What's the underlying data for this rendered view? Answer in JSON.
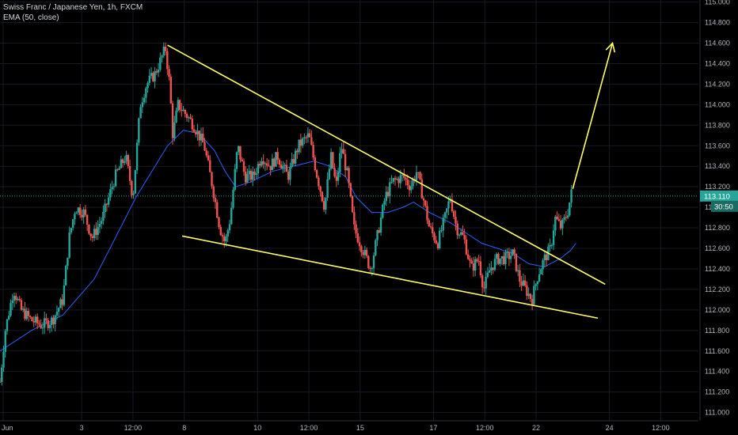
{
  "legend": {
    "symbol_line": "Swiss Franc / Japanese Yen, 1h, FXCM",
    "indicator_line": "EMA (50, close)"
  },
  "price_badge": {
    "price": "113.110",
    "countdown": "30:50"
  },
  "colors": {
    "background": "#000000",
    "up_candle": "#26a69a",
    "down_candle": "#ef5350",
    "ema": "#2962ff",
    "trendlines": "#ffff66",
    "price_line": "#26a69a",
    "grid": "#161a22"
  },
  "chart_data": {
    "type": "candlestick",
    "instrument": "Swiss Franc / Japanese Yen",
    "timeframe": "1h",
    "source": "FXCM",
    "y_axis": {
      "ticks": [
        "115.000",
        "114.800",
        "114.600",
        "114.400",
        "114.200",
        "114.000",
        "113.800",
        "113.600",
        "113.400",
        "113.200",
        "113.000",
        "112.800",
        "112.600",
        "112.400",
        "112.200",
        "112.000",
        "111.800",
        "111.600",
        "111.400",
        "111.200",
        "111.000"
      ],
      "range": [
        110.92,
        115.02
      ]
    },
    "x_axis": {
      "ticks": [
        {
          "label": "Jun",
          "t": 0.3
        },
        {
          "label": "3",
          "t": 7.8
        },
        {
          "label": "12:00",
          "t": 12.7
        },
        {
          "label": "8",
          "t": 17.6
        },
        {
          "label": "10",
          "t": 24.6
        },
        {
          "label": "12:00",
          "t": 29.5
        },
        {
          "label": "15",
          "t": 34.4
        },
        {
          "label": "17",
          "t": 41.4
        },
        {
          "label": "12:00",
          "t": 46.3
        },
        {
          "label": "22",
          "t": 51.2
        },
        {
          "label": "24",
          "t": 58.2
        },
        {
          "label": "12:00",
          "t": 63.1
        }
      ],
      "range": [
        0,
        66.4
      ]
    },
    "current_price": 113.11,
    "price_path": [
      [
        0,
        111.3
      ],
      [
        0.5,
        111.8
      ],
      [
        1.3,
        112.2
      ],
      [
        2,
        112.0
      ],
      [
        3,
        111.9
      ],
      [
        4,
        111.85
      ],
      [
        5,
        111.9
      ],
      [
        6,
        112.1
      ],
      [
        6.6,
        112.7
      ],
      [
        7.2,
        113.0
      ],
      [
        8,
        112.95
      ],
      [
        8.8,
        112.7
      ],
      [
        9.8,
        112.9
      ],
      [
        11,
        113.3
      ],
      [
        12,
        113.5
      ],
      [
        12.7,
        113.1
      ],
      [
        13.4,
        114.0
      ],
      [
        14,
        114.2
      ],
      [
        14.8,
        114.3
      ],
      [
        15.4,
        114.45
      ],
      [
        15.8,
        114.55
      ],
      [
        16.2,
        114.2
      ],
      [
        16.5,
        113.7
      ],
      [
        17,
        114.0
      ],
      [
        17.8,
        113.9
      ],
      [
        18.5,
        113.8
      ],
      [
        19.5,
        113.6
      ],
      [
        20.3,
        113.2
      ],
      [
        21,
        112.8
      ],
      [
        21.5,
        112.65
      ],
      [
        22,
        112.9
      ],
      [
        22.7,
        113.6
      ],
      [
        23.4,
        113.3
      ],
      [
        24.2,
        113.3
      ],
      [
        25,
        113.5
      ],
      [
        25.8,
        113.4
      ],
      [
        26.5,
        113.5
      ],
      [
        27.5,
        113.3
      ],
      [
        28.5,
        113.6
      ],
      [
        29.5,
        113.7
      ],
      [
        30.3,
        113.3
      ],
      [
        31,
        113.0
      ],
      [
        31.6,
        113.5
      ],
      [
        32.1,
        113.2
      ],
      [
        32.6,
        113.6
      ],
      [
        33.2,
        113.3
      ],
      [
        33.8,
        112.8
      ],
      [
        34.6,
        112.6
      ],
      [
        35.4,
        112.4
      ],
      [
        36.2,
        112.8
      ],
      [
        36.8,
        113.1
      ],
      [
        37.5,
        113.25
      ],
      [
        38.5,
        113.3
      ],
      [
        39.2,
        113.2
      ],
      [
        39.8,
        113.35
      ],
      [
        40.4,
        113.1
      ],
      [
        41,
        112.8
      ],
      [
        41.8,
        112.65
      ],
      [
        42.5,
        112.9
      ],
      [
        43,
        113.1
      ],
      [
        43.6,
        112.8
      ],
      [
        44.3,
        112.7
      ],
      [
        45,
        112.4
      ],
      [
        45.7,
        112.5
      ],
      [
        46.2,
        112.2
      ],
      [
        46.8,
        112.4
      ],
      [
        47.5,
        112.5
      ],
      [
        48.2,
        112.5
      ],
      [
        49,
        112.55
      ],
      [
        49.6,
        112.3
      ],
      [
        50.2,
        112.2
      ],
      [
        50.8,
        112.1
      ],
      [
        51.4,
        112.35
      ],
      [
        52,
        112.5
      ],
      [
        52.6,
        112.6
      ],
      [
        53,
        112.9
      ],
      [
        53.6,
        112.8
      ],
      [
        54.2,
        112.95
      ],
      [
        54.7,
        113.2
      ]
    ],
    "ema": [
      [
        0,
        111.6
      ],
      [
        3,
        111.8
      ],
      [
        6,
        111.95
      ],
      [
        9,
        112.3
      ],
      [
        11,
        112.7
      ],
      [
        13,
        113.1
      ],
      [
        14.5,
        113.35
      ],
      [
        16,
        113.6
      ],
      [
        17.5,
        113.75
      ],
      [
        19,
        113.72
      ],
      [
        20.5,
        113.55
      ],
      [
        21.5,
        113.35
      ],
      [
        22.5,
        113.2
      ],
      [
        24,
        113.25
      ],
      [
        26,
        113.35
      ],
      [
        28,
        113.4
      ],
      [
        30,
        113.45
      ],
      [
        31.5,
        113.4
      ],
      [
        33,
        113.3
      ],
      [
        34,
        113.1
      ],
      [
        35.5,
        112.95
      ],
      [
        37,
        112.95
      ],
      [
        38.5,
        113.0
      ],
      [
        39.5,
        113.05
      ],
      [
        41,
        112.95
      ],
      [
        43,
        112.85
      ],
      [
        44.5,
        112.75
      ],
      [
        46,
        112.65
      ],
      [
        47.5,
        112.6
      ],
      [
        49,
        112.55
      ],
      [
        50.5,
        112.45
      ],
      [
        52,
        112.42
      ],
      [
        53.5,
        112.5
      ],
      [
        54.5,
        112.58
      ],
      [
        55,
        112.65
      ]
    ],
    "annotations": [
      {
        "type": "trendline",
        "name": "upper-trendline",
        "points": [
          [
            16,
            114.58
          ],
          [
            57.8,
            112.25
          ]
        ]
      },
      {
        "type": "trendline",
        "name": "lower-trendline",
        "points": [
          [
            17.4,
            112.72
          ],
          [
            57.1,
            111.92
          ]
        ]
      },
      {
        "type": "arrow",
        "name": "projection-arrow",
        "points": [
          [
            54.7,
            113.18
          ],
          [
            58.5,
            114.6
          ]
        ]
      }
    ]
  }
}
